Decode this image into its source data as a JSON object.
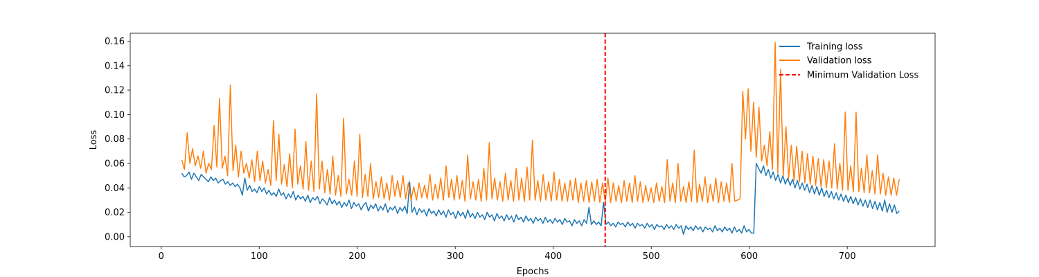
{
  "chart_data": {
    "type": "line",
    "xlabel": "Epochs",
    "ylabel": "Loss",
    "xlim": [
      -31.6,
      789.6
    ],
    "ylim": [
      -0.008,
      0.1665
    ],
    "x_ticks": [
      0,
      100,
      200,
      300,
      400,
      500,
      600,
      700
    ],
    "x_tick_labels": [
      "0",
      "100",
      "200",
      "300",
      "400",
      "500",
      "600",
      "700"
    ],
    "y_ticks": [
      0.0,
      0.02,
      0.04,
      0.06,
      0.08,
      0.1,
      0.12,
      0.14,
      0.16
    ],
    "y_tick_labels": [
      "0.00",
      "0.02",
      "0.04",
      "0.06",
      "0.08",
      "0.10",
      "0.12",
      "0.14",
      "0.16"
    ],
    "grid": false,
    "legend_position": "top-right",
    "series": [
      {
        "name": "Training loss",
        "color": "#1f77b4",
        "x_start": 21,
        "x_end": 753,
        "y": [
          0.052,
          0.049,
          0.05,
          0.053,
          0.047,
          0.052,
          0.049,
          0.046,
          0.051,
          0.049,
          0.047,
          0.045,
          0.049,
          0.046,
          0.048,
          0.044,
          0.046,
          0.047,
          0.043,
          0.045,
          0.042,
          0.044,
          0.041,
          0.043,
          0.04,
          0.034,
          0.048,
          0.038,
          0.042,
          0.037,
          0.039,
          0.036,
          0.041,
          0.037,
          0.04,
          0.035,
          0.038,
          0.034,
          0.036,
          0.033,
          0.039,
          0.034,
          0.036,
          0.031,
          0.035,
          0.032,
          0.037,
          0.03,
          0.034,
          0.031,
          0.033,
          0.029,
          0.034,
          0.028,
          0.032,
          0.03,
          0.033,
          0.027,
          0.031,
          0.029,
          0.026,
          0.032,
          0.027,
          0.03,
          0.026,
          0.029,
          0.024,
          0.028,
          0.025,
          0.03,
          0.023,
          0.028,
          0.025,
          0.027,
          0.022,
          0.026,
          0.028,
          0.021,
          0.026,
          0.023,
          0.027,
          0.021,
          0.025,
          0.022,
          0.027,
          0.02,
          0.024,
          0.022,
          0.025,
          0.019,
          0.024,
          0.021,
          0.025,
          0.019,
          0.045,
          0.02,
          0.024,
          0.018,
          0.023,
          0.02,
          0.022,
          0.017,
          0.023,
          0.019,
          0.021,
          0.017,
          0.022,
          0.018,
          0.021,
          0.016,
          0.022,
          0.018,
          0.02,
          0.015,
          0.021,
          0.017,
          0.02,
          0.015,
          0.022,
          0.016,
          0.019,
          0.015,
          0.02,
          0.016,
          0.018,
          0.014,
          0.02,
          0.016,
          0.018,
          0.013,
          0.019,
          0.015,
          0.017,
          0.013,
          0.018,
          0.014,
          0.017,
          0.012,
          0.018,
          0.014,
          0.016,
          0.012,
          0.017,
          0.013,
          0.015,
          0.011,
          0.016,
          0.013,
          0.015,
          0.011,
          0.016,
          0.012,
          0.014,
          0.011,
          0.015,
          0.012,
          0.014,
          0.01,
          0.015,
          0.012,
          0.013,
          0.009,
          0.014,
          0.011,
          0.013,
          0.009,
          0.014,
          0.011,
          0.024,
          0.01,
          0.013,
          0.01,
          0.012,
          0.009,
          0.028,
          0.01,
          0.012,
          0.009,
          0.011,
          0.008,
          0.012,
          0.01,
          0.011,
          0.008,
          0.012,
          0.009,
          0.011,
          0.007,
          0.011,
          0.009,
          0.01,
          0.007,
          0.011,
          0.008,
          0.01,
          0.006,
          0.01,
          0.008,
          0.009,
          0.006,
          0.01,
          0.007,
          0.009,
          0.006,
          0.01,
          0.007,
          0.009,
          0.002,
          0.009,
          0.006,
          0.008,
          0.005,
          0.009,
          0.006,
          0.008,
          0.004,
          0.008,
          0.006,
          0.007,
          0.004,
          0.009,
          0.005,
          0.007,
          0.004,
          0.008,
          0.005,
          0.007,
          0.003,
          0.008,
          0.004,
          0.006,
          0.003,
          0.009,
          0.004,
          0.006,
          0.003,
          0.003,
          0.06,
          0.056,
          0.052,
          0.058,
          0.05,
          0.055,
          0.048,
          0.053,
          0.046,
          0.051,
          0.044,
          0.05,
          0.043,
          0.048,
          0.042,
          0.047,
          0.04,
          0.046,
          0.039,
          0.044,
          0.038,
          0.043,
          0.036,
          0.042,
          0.035,
          0.041,
          0.034,
          0.04,
          0.033,
          0.038,
          0.032,
          0.037,
          0.031,
          0.036,
          0.03,
          0.035,
          0.029,
          0.034,
          0.028,
          0.033,
          0.027,
          0.032,
          0.026,
          0.031,
          0.025,
          0.03,
          0.024,
          0.03,
          0.023,
          0.029,
          0.022,
          0.028,
          0.021,
          0.03,
          0.02,
          0.027,
          0.02,
          0.026,
          0.019,
          0.021
        ]
      },
      {
        "name": "Validation loss",
        "color": "#ff7f0e",
        "x_start": 21,
        "x_end": 753,
        "y": [
          0.063,
          0.055,
          0.085,
          0.06,
          0.072,
          0.058,
          0.066,
          0.056,
          0.07,
          0.052,
          0.06,
          0.055,
          0.091,
          0.057,
          0.113,
          0.056,
          0.066,
          0.05,
          0.124,
          0.054,
          0.075,
          0.049,
          0.07,
          0.052,
          0.06,
          0.048,
          0.063,
          0.045,
          0.07,
          0.046,
          0.062,
          0.044,
          0.055,
          0.042,
          0.095,
          0.046,
          0.084,
          0.043,
          0.059,
          0.041,
          0.068,
          0.04,
          0.088,
          0.043,
          0.058,
          0.039,
          0.078,
          0.038,
          0.062,
          0.037,
          0.117,
          0.039,
          0.062,
          0.036,
          0.055,
          0.035,
          0.066,
          0.034,
          0.05,
          0.033,
          0.097,
          0.035,
          0.047,
          0.034,
          0.062,
          0.033,
          0.084,
          0.032,
          0.051,
          0.033,
          0.06,
          0.031,
          0.045,
          0.032,
          0.049,
          0.031,
          0.044,
          0.03,
          0.05,
          0.033,
          0.046,
          0.032,
          0.05,
          0.031,
          0.044,
          0.03,
          0.041,
          0.03,
          0.044,
          0.032,
          0.042,
          0.031,
          0.051,
          0.03,
          0.043,
          0.031,
          0.048,
          0.03,
          0.058,
          0.032,
          0.047,
          0.03,
          0.05,
          0.031,
          0.046,
          0.029,
          0.067,
          0.031,
          0.045,
          0.03,
          0.047,
          0.029,
          0.056,
          0.03,
          0.077,
          0.031,
          0.048,
          0.03,
          0.045,
          0.029,
          0.052,
          0.03,
          0.046,
          0.029,
          0.056,
          0.03,
          0.048,
          0.029,
          0.057,
          0.03,
          0.079,
          0.03,
          0.046,
          0.029,
          0.051,
          0.03,
          0.045,
          0.029,
          0.053,
          0.03,
          0.047,
          0.029,
          0.044,
          0.029,
          0.046,
          0.03,
          0.048,
          0.028,
          0.044,
          0.029,
          0.046,
          0.028,
          0.045,
          0.029,
          0.047,
          0.028,
          0.044,
          0.029,
          0.048,
          0.028,
          0.044,
          0.029,
          0.042,
          0.028,
          0.046,
          0.029,
          0.044,
          0.028,
          0.05,
          0.029,
          0.045,
          0.028,
          0.042,
          0.029,
          0.04,
          0.028,
          0.044,
          0.029,
          0.041,
          0.028,
          0.063,
          0.029,
          0.044,
          0.028,
          0.06,
          0.029,
          0.041,
          0.028,
          0.045,
          0.029,
          0.071,
          0.028,
          0.043,
          0.029,
          0.049,
          0.028,
          0.043,
          0.029,
          0.048,
          0.028,
          0.045,
          0.029,
          0.044,
          0.028,
          0.06,
          0.029,
          0.03,
          0.031,
          0.119,
          0.08,
          0.121,
          0.07,
          0.11,
          0.065,
          0.106,
          0.062,
          0.075,
          0.058,
          0.086,
          0.055,
          0.159,
          0.052,
          0.137,
          0.05,
          0.09,
          0.048,
          0.075,
          0.046,
          0.074,
          0.045,
          0.07,
          0.044,
          0.068,
          0.043,
          0.066,
          0.042,
          0.064,
          0.041,
          0.063,
          0.04,
          0.062,
          0.04,
          0.076,
          0.039,
          0.06,
          0.038,
          0.102,
          0.038,
          0.058,
          0.037,
          0.102,
          0.037,
          0.056,
          0.036,
          0.067,
          0.036,
          0.054,
          0.035,
          0.067,
          0.035,
          0.052,
          0.034,
          0.049,
          0.034,
          0.048,
          0.034,
          0.047
        ]
      }
    ],
    "vertical_line": {
      "name": "Minimum Validation Loss",
      "x": 453,
      "color": "#ff0000",
      "style": "dashed"
    }
  }
}
